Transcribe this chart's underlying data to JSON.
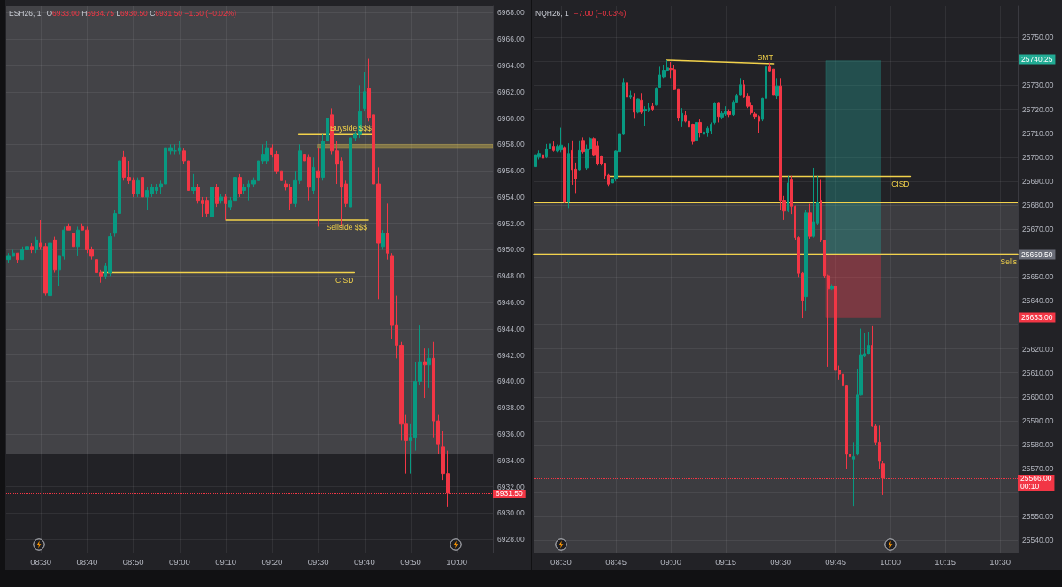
{
  "chart_data": [
    {
      "type": "candlestick",
      "title": "ESH26, 1",
      "subtitle": "O6933.00 H6934.75 L6930.50 C6931.50 −1.50 (−0.02%)",
      "x": [
        8.3833,
        8.4,
        8.4167,
        8.4333,
        8.45,
        8.4667,
        8.4833,
        8.5,
        8.5167,
        8.5333,
        8.55,
        8.5667,
        8.5833,
        8.6,
        8.6167,
        8.6333,
        8.65,
        8.6667,
        8.6833,
        8.7,
        8.7167,
        8.7333,
        8.75,
        8.7667,
        8.7833,
        8.8,
        8.8167,
        8.8333,
        8.85,
        8.8667,
        8.8833,
        8.9,
        8.9167,
        8.9333,
        8.95,
        8.9667,
        8.9833,
        9,
        9.0167,
        9.0333,
        9.05,
        9.0667,
        9.0833,
        9.1,
        9.1167,
        9.1333,
        9.15,
        9.1667,
        9.1833,
        9.2,
        9.2167,
        9.2333,
        9.25,
        9.2667,
        9.2833,
        9.3,
        9.3167,
        9.3333,
        9.35,
        9.3667,
        9.3833,
        9.4,
        9.4167,
        9.4333,
        9.45,
        9.4667,
        9.4833,
        9.5,
        9.5167,
        9.5333,
        9.55,
        9.5667,
        9.5833,
        9.6,
        9.6167,
        9.6333,
        9.65,
        9.6667,
        9.6833,
        9.7,
        9.7167,
        9.7333,
        9.75,
        9.7667,
        9.7833,
        9.8,
        9.8167,
        9.8333,
        9.85,
        9.8667,
        9.8833,
        9.9,
        9.9167,
        9.9333,
        9.95,
        9.9667
      ],
      "ohlc": [
        [
          6949.25,
          6949.75,
          6949.0,
          6949.5
        ],
        [
          6949.5,
          6950.0,
          6949.5,
          6949.75
        ],
        [
          6949.75,
          6949.75,
          6949.0,
          6949.25
        ],
        [
          6949.25,
          6950.25,
          6949.25,
          6950.0
        ],
        [
          6950.0,
          6950.75,
          6949.75,
          6950.25
        ],
        [
          6950.25,
          6950.5,
          6949.75,
          6950.0
        ],
        [
          6950.0,
          6951.0,
          6949.75,
          6950.75
        ],
        [
          6950.5,
          6952.25,
          6950.0,
          6950.25
        ],
        [
          6950.25,
          6950.5,
          6946.5,
          6946.75
        ],
        [
          6946.5,
          6952.75,
          6946.0,
          6950.5
        ],
        [
          6950.75,
          6951.0,
          6948.25,
          6948.5
        ],
        [
          6948.5,
          6949.5,
          6947.25,
          6949.5
        ],
        [
          6949.5,
          6951.75,
          6949.25,
          6951.5
        ],
        [
          6951.75,
          6952.0,
          6951.5,
          6951.5
        ],
        [
          6951.25,
          6951.5,
          6950.0,
          6950.25
        ],
        [
          6950.25,
          6951.75,
          6949.5,
          6951.5
        ],
        [
          6951.75,
          6952.0,
          6951.5,
          6951.5
        ],
        [
          6951.5,
          6951.75,
          6949.75,
          6950.0
        ],
        [
          6950.0,
          6950.25,
          6949.25,
          6949.5
        ],
        [
          6949.25,
          6949.5,
          6947.75,
          6948.25
        ],
        [
          6948.25,
          6948.5,
          6947.5,
          6948.0
        ],
        [
          6948.0,
          6949.0,
          6947.75,
          6948.75
        ],
        [
          6948.25,
          6951.25,
          6948.0,
          6951.0
        ],
        [
          6951.25,
          6953.0,
          6951.0,
          6952.75
        ],
        [
          6952.75,
          6957.5,
          6952.5,
          6956.75
        ],
        [
          6957.0,
          6957.5,
          6955.25,
          6955.5
        ],
        [
          6955.5,
          6956.75,
          6955.0,
          6955.25
        ],
        [
          6955.25,
          6955.5,
          6954.0,
          6954.25
        ],
        [
          6954.25,
          6955.5,
          6954.0,
          6955.25
        ],
        [
          6955.5,
          6955.75,
          6953.75,
          6954.0
        ],
        [
          6954.0,
          6954.75,
          6953.0,
          6954.5
        ],
        [
          6954.25,
          6955.0,
          6954.0,
          6954.75
        ],
        [
          6954.5,
          6955.0,
          6954.25,
          6954.75
        ],
        [
          6954.75,
          6955.25,
          6954.25,
          6955.0
        ],
        [
          6955.0,
          6958.5,
          6954.75,
          6957.75
        ],
        [
          6957.5,
          6958.0,
          6957.25,
          6957.75
        ],
        [
          6957.5,
          6958.0,
          6957.25,
          6957.5
        ],
        [
          6957.5,
          6958.25,
          6957.25,
          6957.75
        ],
        [
          6957.5,
          6957.75,
          6956.5,
          6956.75
        ],
        [
          6956.75,
          6957.0,
          6954.0,
          6954.5
        ],
        [
          6954.5,
          6955.75,
          6954.25,
          6954.75
        ],
        [
          6954.75,
          6955.0,
          6953.5,
          6953.75
        ],
        [
          6953.75,
          6954.0,
          6952.5,
          6953.5
        ],
        [
          6953.75,
          6954.0,
          6952.5,
          6952.75
        ],
        [
          6952.5,
          6955.0,
          6952.25,
          6954.75
        ],
        [
          6954.75,
          6955.0,
          6953.25,
          6953.5
        ],
        [
          6953.75,
          6954.25,
          6953.5,
          6954.0
        ],
        [
          6954.0,
          6954.25,
          6952.25,
          6953.5
        ],
        [
          6953.25,
          6954.0,
          6953.0,
          6953.75
        ],
        [
          6953.75,
          6955.75,
          6953.5,
          6955.5
        ],
        [
          6955.5,
          6955.75,
          6954.0,
          6954.25
        ],
        [
          6954.5,
          6955.0,
          6954.25,
          6954.75
        ],
        [
          6954.75,
          6955.25,
          6953.75,
          6955.0
        ],
        [
          6955.0,
          6955.5,
          6954.75,
          6955.25
        ],
        [
          6955.25,
          6957.0,
          6955.0,
          6956.75
        ],
        [
          6956.75,
          6958.0,
          6956.5,
          6957.25
        ],
        [
          6956.75,
          6958.25,
          6956.5,
          6957.75
        ],
        [
          6957.75,
          6958.0,
          6957.0,
          6957.25
        ],
        [
          6957.25,
          6957.5,
          6955.75,
          6956.0
        ],
        [
          6956.0,
          6956.25,
          6955.0,
          6955.25
        ],
        [
          6955.0,
          6955.25,
          6954.5,
          6954.75
        ],
        [
          6954.75,
          6955.0,
          6953.0,
          6953.5
        ],
        [
          6953.5,
          6956.0,
          6953.25,
          6955.25
        ],
        [
          6955.25,
          6958.0,
          6955.0,
          6957.5
        ],
        [
          6957.25,
          6957.5,
          6956.5,
          6956.75
        ],
        [
          6957.0,
          6957.25,
          6953.75,
          6954.75
        ],
        [
          6954.5,
          6957.0,
          6954.25,
          6956.25
        ],
        [
          6956.0,
          6957.75,
          6951.75,
          6955.5
        ],
        [
          6955.5,
          6958.75,
          6955.25,
          6958.25
        ],
        [
          6958.25,
          6961.0,
          6958.0,
          6960.0
        ],
        [
          6960.25,
          6960.75,
          6957.25,
          6957.5
        ],
        [
          6957.5,
          6958.25,
          6955.0,
          6956.5
        ],
        [
          6956.75,
          6957.0,
          6951.75,
          6954.75
        ],
        [
          6955.0,
          6955.25,
          6953.25,
          6953.5
        ],
        [
          6953.25,
          6958.75,
          6953.0,
          6958.5
        ],
        [
          6958.5,
          6959.0,
          6958.25,
          6958.75
        ],
        [
          6958.75,
          6962.5,
          6958.5,
          6960.5
        ],
        [
          6960.75,
          6963.5,
          6960.5,
          6962.0
        ],
        [
          6962.25,
          6964.5,
          6959.75,
          6960.0
        ],
        [
          6960.25,
          6960.5,
          6954.75,
          6955.0
        ],
        [
          6955.0,
          6956.25,
          6946.25,
          6950.5
        ],
        [
          6950.25,
          6951.5,
          6950.0,
          6951.25
        ],
        [
          6951.25,
          6953.5,
          6949.25,
          6949.75
        ],
        [
          6949.5,
          6949.75,
          6943.25,
          6944.25
        ],
        [
          6944.25,
          6946.5,
          6941.75,
          6942.75
        ],
        [
          6942.75,
          6943.0,
          6935.5,
          6936.75
        ],
        [
          6936.75,
          6937.5,
          6933.0,
          6935.5
        ],
        [
          6935.5,
          6936.75,
          6933.0,
          6935.75
        ],
        [
          6935.75,
          6941.5,
          6934.75,
          6940.0
        ],
        [
          6940.0,
          6944.25,
          6939.75,
          6941.5
        ],
        [
          6941.5,
          6942.5,
          6938.75,
          6941.25
        ],
        [
          6941.25,
          6942.5,
          6939.5,
          6941.75
        ],
        [
          6941.75,
          6943.0,
          6935.75,
          6937.0
        ],
        [
          6937.0,
          6937.5,
          6934.5,
          6935.25
        ],
        [
          6935.0,
          6936.25,
          6932.5,
          6933.0
        ],
        [
          6933.0,
          6934.75,
          6930.5,
          6931.5
        ]
      ],
      "colors": [
        "#089981",
        "#089981",
        "#f23645",
        "#089981",
        "#089981",
        "#f23645",
        "#089981",
        "#f23645",
        "#f23645",
        "#089981",
        "#f23645",
        "#089981",
        "#089981",
        "#f23645",
        "#f23645",
        "#089981",
        "#f23645",
        "#f23645",
        "#f23645",
        "#f23645",
        "#f23645",
        "#089981",
        "#089981",
        "#089981",
        "#089981",
        "#f23645",
        "#f23645",
        "#f23645",
        "#089981",
        "#f23645",
        "#089981",
        "#089981",
        "#089981",
        "#089981",
        "#089981",
        "#089981",
        "#089981",
        "#089981",
        "#f23645",
        "#f23645",
        "#089981",
        "#f23645",
        "#f23645",
        "#f23645",
        "#089981",
        "#f23645",
        "#089981",
        "#f23645",
        "#089981",
        "#089981",
        "#f23645",
        "#089981",
        "#089981",
        "#089981",
        "#089981",
        "#089981",
        "#089981",
        "#f23645",
        "#f23645",
        "#f23645",
        "#f23645",
        "#f23645",
        "#089981",
        "#089981",
        "#f23645",
        "#f23645",
        "#089981",
        "#f23645",
        "#089981",
        "#089981",
        "#f23645",
        "#f23645",
        "#f23645",
        "#f23645",
        "#089981",
        "#089981",
        "#089981",
        "#089981",
        "#f23645",
        "#f23645",
        "#f23645",
        "#089981",
        "#f23645",
        "#f23645",
        "#f23645",
        "#f23645",
        "#f23645",
        "#089981",
        "#089981",
        "#089981",
        "#f23645",
        "#089981",
        "#f23645",
        "#f23645",
        "#f23645",
        "#f23645"
      ],
      "xlim": [
        8.375,
        10.13
      ],
      "xticks": [
        {
          "value": 8.5,
          "label": "08:30"
        },
        {
          "value": 8.6667,
          "label": "08:40"
        },
        {
          "value": 8.8333,
          "label": "08:50"
        },
        {
          "value": 9,
          "label": "09:00"
        },
        {
          "value": 9.1667,
          "label": "09:10"
        },
        {
          "value": 9.3333,
          "label": "09:20"
        },
        {
          "value": 9.5,
          "label": "09:30"
        },
        {
          "value": 9.6667,
          "label": "09:40"
        },
        {
          "value": 9.8333,
          "label": "09:50"
        },
        {
          "value": 10,
          "label": "10:00"
        }
      ],
      "ylim": [
        6927,
        6968.5
      ],
      "yticks": [
        {
          "value": 6928,
          "label": "6928.00"
        },
        {
          "value": 6930,
          "label": "6930.00"
        },
        {
          "value": 6932,
          "label": "6932.00"
        },
        {
          "value": 6934,
          "label": "6934.00"
        },
        {
          "value": 6936,
          "label": "6936.00"
        },
        {
          "value": 6938,
          "label": "6938.00"
        },
        {
          "value": 6940,
          "label": "6940.00"
        },
        {
          "value": 6942,
          "label": "6942.00"
        },
        {
          "value": 6944,
          "label": "6944.00"
        },
        {
          "value": 6946,
          "label": "6946.00"
        },
        {
          "value": 6948,
          "label": "6948.00"
        },
        {
          "value": 6950,
          "label": "6950.00"
        },
        {
          "value": 6952,
          "label": "6952.00"
        },
        {
          "value": 6954,
          "label": "6954.00"
        },
        {
          "value": 6956,
          "label": "6956.00"
        },
        {
          "value": 6958,
          "label": "6958.00"
        },
        {
          "value": 6960,
          "label": "6960.00"
        },
        {
          "value": 6962,
          "label": "6962.00"
        },
        {
          "value": 6964,
          "label": "6964.00"
        },
        {
          "value": 6966,
          "label": "6966.00"
        },
        {
          "value": 6968,
          "label": "6968.00"
        }
      ],
      "grid": true,
      "series": [
        {
          "type": "line",
          "name": "CISD",
          "x": [
            8.7167,
            9.63
          ],
          "values": [
            6948.25,
            6948.25
          ],
          "color": "#f2d24b"
        },
        {
          "type": "line",
          "name": "Sellside $$$",
          "x": [
            9.1667,
            9.68
          ],
          "values": [
            6952.25,
            6952.25
          ],
          "color": "#f2d24b"
        },
        {
          "type": "line",
          "name": "Buyside $$$",
          "x": [
            9.43,
            9.695
          ],
          "values": [
            6958.75,
            6958.75
          ],
          "color": "#f2d24b"
        },
        {
          "type": "area",
          "x": [
            9.497,
            10.13,
            10.13,
            9.497
          ],
          "values": [
            6958,
            6958,
            6957.75,
            6957.75
          ],
          "color": "#f2d24b"
        }
      ],
      "ref_lines": [
        {
          "axis": "y",
          "value": 6934.5,
          "color": "#f2d24b"
        },
        {
          "axis": "y",
          "value": 6931.5,
          "label": "6931.50",
          "color": "#f23645",
          "line_style": "dotted"
        }
      ],
      "bands": [
        {
          "axis": "y",
          "from": 6934.5,
          "to": 6968.5,
          "color": "#434347"
        }
      ]
    },
    {
      "type": "candlestick",
      "title": "NQH26, 1",
      "subtitle": "−7.00 (−0.03%)",
      "x": [
        8.3833,
        8.4,
        8.4167,
        8.4333,
        8.45,
        8.4667,
        8.4833,
        8.5,
        8.5167,
        8.5333,
        8.55,
        8.5667,
        8.5833,
        8.6,
        8.6167,
        8.6333,
        8.65,
        8.6667,
        8.6833,
        8.7,
        8.7167,
        8.7333,
        8.75,
        8.7667,
        8.7833,
        8.8,
        8.8167,
        8.8333,
        8.85,
        8.8667,
        8.8833,
        8.9,
        8.9167,
        8.9333,
        8.95,
        8.9667,
        8.9833,
        9,
        9.0167,
        9.0333,
        9.05,
        9.0667,
        9.0833,
        9.1,
        9.1167,
        9.1333,
        9.15,
        9.1667,
        9.1833,
        9.2,
        9.2167,
        9.2333,
        9.25,
        9.2667,
        9.2833,
        9.3,
        9.3167,
        9.3333,
        9.35,
        9.3667,
        9.3833,
        9.4,
        9.4167,
        9.4333,
        9.45,
        9.4667,
        9.4833,
        9.5,
        9.5167,
        9.5333,
        9.55,
        9.5667,
        9.5833,
        9.6,
        9.6167,
        9.6333,
        9.65,
        9.6667,
        9.6833,
        9.7,
        9.7167,
        9.7333,
        9.75,
        9.7667,
        9.7833,
        9.8,
        9.8167,
        9.8333,
        9.85,
        9.8667,
        9.8833,
        9.9,
        9.9167,
        9.9333,
        9.95,
        9.9667
      ],
      "ohlc": [
        [
          25696.0,
          25701.5,
          25695.5,
          25701.0
        ],
        [
          25700.0,
          25702.75,
          25699.0,
          25701.5
        ],
        [
          25701.0,
          25701.5,
          25699.25,
          25699.5
        ],
        [
          25700.0,
          25705.5,
          25699.5,
          25703.5
        ],
        [
          25703.5,
          25707.25,
          25702.75,
          25705.5
        ],
        [
          25704.5,
          25706.5,
          25702.25,
          25702.75
        ],
        [
          25702.5,
          25705.25,
          25702.0,
          25704.5
        ],
        [
          25703.0,
          25712.25,
          25702.0,
          25705.0
        ],
        [
          25704.0,
          25704.5,
          25680.75,
          25681.25
        ],
        [
          25681.25,
          25705.75,
          25678.75,
          25701.5
        ],
        [
          25702.75,
          25707.0,
          25688.5,
          25694.75
        ],
        [
          25695.0,
          25697.75,
          25685.0,
          25691.0
        ],
        [
          25694.75,
          25707.0,
          25694.5,
          25702.75
        ],
        [
          25707.0,
          25708.25,
          25701.5,
          25702.25
        ],
        [
          25695.5,
          25705.25,
          25694.75,
          25703.5
        ],
        [
          25703.5,
          25708.25,
          25703.0,
          25707.75
        ],
        [
          25707.75,
          25708.25,
          25700.25,
          25701.0
        ],
        [
          25704.75,
          25706.5,
          25696.5,
          25697.25
        ],
        [
          25700.25,
          25700.75,
          25696.5,
          25697.25
        ],
        [
          25697.5,
          25697.5,
          25691.0,
          25692.25
        ],
        [
          25692.5,
          25693.0,
          25688.0,
          25688.75
        ],
        [
          25689.25,
          25693.0,
          25686.0,
          25691.0
        ],
        [
          25691.0,
          25702.75,
          25690.0,
          25702.5
        ],
        [
          25702.25,
          25710.25,
          25702.0,
          25709.5
        ],
        [
          25709.5,
          25733.0,
          25709.25,
          25731.0
        ],
        [
          25731.0,
          25734.0,
          25724.5,
          25725.0
        ],
        [
          25725.0,
          25727.75,
          25724.25,
          25725.5
        ],
        [
          25725.0,
          25726.75,
          25716.0,
          25718.75
        ],
        [
          25718.75,
          25724.5,
          25718.25,
          25724.25
        ],
        [
          25723.75,
          25726.75,
          25718.0,
          25718.75
        ],
        [
          25719.25,
          25721.25,
          25713.0,
          25720.0
        ],
        [
          25719.75,
          25722.5,
          25718.75,
          25720.5
        ],
        [
          25721.25,
          25722.75,
          25719.5,
          25720.0
        ],
        [
          25721.75,
          25729.25,
          25721.5,
          25728.5
        ],
        [
          25729.25,
          25737.75,
          25729.0,
          25734.25
        ],
        [
          25733.5,
          25738.5,
          25733.0,
          25736.25
        ],
        [
          25736.25,
          25740.5,
          25736.0,
          25737.25
        ],
        [
          25737.0,
          25739.75,
          25733.0,
          25736.5
        ],
        [
          25736.5,
          25738.5,
          25728.0,
          25728.25
        ],
        [
          25728.25,
          25728.25,
          25715.0,
          25716.25
        ],
        [
          25715.0,
          25720.5,
          25712.5,
          25718.25
        ],
        [
          25717.5,
          25719.25,
          25714.5,
          25715.0
        ],
        [
          25715.0,
          25715.75,
          25711.0,
          25712.5
        ],
        [
          25713.75,
          25714.0,
          25705.25,
          25706.5
        ],
        [
          25707.0,
          25715.75,
          25706.5,
          25714.5
        ],
        [
          25714.5,
          25715.75,
          25708.25,
          25710.25
        ],
        [
          25709.5,
          25712.0,
          25705.75,
          25710.5
        ],
        [
          25710.25,
          25712.75,
          25708.5,
          25712.0
        ],
        [
          25711.0,
          25714.5,
          25709.5,
          25713.75
        ],
        [
          25714.5,
          25723.0,
          25713.75,
          25722.5
        ],
        [
          25722.75,
          25723.0,
          25714.5,
          25717.0
        ],
        [
          25716.75,
          25719.25,
          25715.75,
          25718.25
        ],
        [
          25718.0,
          25721.25,
          25717.25,
          25719.0
        ],
        [
          25719.0,
          25720.0,
          25716.75,
          25717.75
        ],
        [
          25717.75,
          25723.75,
          25717.25,
          25723.0
        ],
        [
          25723.0,
          25726.5,
          25722.5,
          25725.5
        ],
        [
          25725.75,
          25733.0,
          25725.5,
          25730.25
        ],
        [
          25730.25,
          25732.25,
          25724.75,
          25725.0
        ],
        [
          25725.25,
          25726.75,
          25720.5,
          25721.25
        ],
        [
          25721.5,
          25723.0,
          25717.75,
          25718.5
        ],
        [
          25718.0,
          25718.75,
          25715.75,
          25717.0
        ],
        [
          25717.0,
          25717.5,
          25710.0,
          25715.0
        ],
        [
          25715.75,
          25724.75,
          25715.0,
          25724.5
        ],
        [
          25724.5,
          25738.5,
          25724.25,
          25737.75
        ],
        [
          25737.75,
          25739.5,
          25735.5,
          25736.0
        ],
        [
          25736.75,
          25739.25,
          25724.25,
          25725.75
        ],
        [
          25725.5,
          25733.0,
          25724.25,
          25729.75
        ],
        [
          25729.75,
          25733.0,
          25678.0,
          25682.0
        ],
        [
          25682.0,
          25683.75,
          25673.75,
          25677.5
        ],
        [
          25677.5,
          25692.25,
          25677.0,
          25689.25
        ],
        [
          25690.5,
          25692.25,
          25676.25,
          25679.5
        ],
        [
          25679.5,
          25679.75,
          25665.25,
          25666.5
        ],
        [
          25666.5,
          25667.0,
          25650.0,
          25651.5
        ],
        [
          25651.5,
          25652.0,
          25632.75,
          25640.25
        ],
        [
          25641.75,
          25678.0,
          25635.75,
          25676.75
        ],
        [
          25676.75,
          25680.5,
          25666.0,
          25667.0
        ],
        [
          25667.0,
          25695.5,
          25666.5,
          25673.0
        ],
        [
          25672.5,
          25692.25,
          25671.5,
          25681.25
        ],
        [
          25682.0,
          25690.5,
          25664.5,
          25665.25
        ],
        [
          25665.25,
          25665.5,
          25649.75,
          25650.5
        ],
        [
          25650.5,
          25651.0,
          25612.5,
          25645.0
        ],
        [
          25645.0,
          25647.0,
          25644.5,
          25646.25
        ],
        [
          25646.25,
          25647.0,
          25610.5,
          25611.0
        ],
        [
          25611.0,
          25613.0,
          25607.0,
          25609.5
        ],
        [
          25609.5,
          25620.0,
          25597.5,
          25604.5
        ],
        [
          25604.5,
          25604.75,
          25570.0,
          25576.0
        ],
        [
          25576.0,
          25583.5,
          25561.25,
          25575.0
        ],
        [
          25574.0,
          25581.0,
          25554.5,
          25575.0
        ],
        [
          25576.0,
          25611.75,
          25575.5,
          25600.75
        ],
        [
          25600.75,
          25628.5,
          25600.5,
          25617.25
        ],
        [
          25617.0,
          25626.5,
          25616.5,
          25618.0
        ],
        [
          25618.0,
          25627.0,
          25617.5,
          25621.5
        ],
        [
          25621.5,
          25629.5,
          25587.5,
          25587.75
        ],
        [
          25587.75,
          25588.5,
          25580.0,
          25581.0
        ],
        [
          25581.0,
          25588.0,
          25570.0,
          25573.0
        ],
        [
          25572.0,
          25573.0,
          25559.0,
          25566.0
        ]
      ],
      "colors": [
        "#089981",
        "#089981",
        "#f23645",
        "#089981",
        "#089981",
        "#f23645",
        "#089981",
        "#089981",
        "#f23645",
        "#089981",
        "#f23645",
        "#f23645",
        "#089981",
        "#f23645",
        "#089981",
        "#089981",
        "#f23645",
        "#f23645",
        "#f23645",
        "#f23645",
        "#f23645",
        "#089981",
        "#089981",
        "#089981",
        "#089981",
        "#f23645",
        "#089981",
        "#f23645",
        "#089981",
        "#f23645",
        "#089981",
        "#089981",
        "#f23645",
        "#089981",
        "#089981",
        "#089981",
        "#089981",
        "#f23645",
        "#f23645",
        "#f23645",
        "#089981",
        "#f23645",
        "#f23645",
        "#f23645",
        "#089981",
        "#f23645",
        "#089981",
        "#089981",
        "#089981",
        "#089981",
        "#f23645",
        "#089981",
        "#089981",
        "#f23645",
        "#089981",
        "#089981",
        "#089981",
        "#f23645",
        "#f23645",
        "#f23645",
        "#f23645",
        "#f23645",
        "#089981",
        "#089981",
        "#f23645",
        "#f23645",
        "#089981",
        "#f23645",
        "#f23645",
        "#089981",
        "#f23645",
        "#f23645",
        "#f23645",
        "#f23645",
        "#089981",
        "#f23645",
        "#089981",
        "#089981",
        "#f23645",
        "#f23645",
        "#f23645",
        "#089981",
        "#f23645",
        "#f23645",
        "#f23645",
        "#f23645",
        "#f23645",
        "#089981",
        "#089981",
        "#089981",
        "#089981",
        "#089981",
        "#f23645",
        "#f23645",
        "#f23645",
        "#f23645"
      ],
      "xlim": [
        8.375,
        10.58
      ],
      "xticks": [
        {
          "value": 8.5,
          "label": "08:30"
        },
        {
          "value": 8.75,
          "label": "08:45"
        },
        {
          "value": 9,
          "label": "09:00"
        },
        {
          "value": 9.25,
          "label": "09:15"
        },
        {
          "value": 9.5,
          "label": "09:30"
        },
        {
          "value": 9.75,
          "label": "09:45"
        },
        {
          "value": 10,
          "label": "10:00"
        },
        {
          "value": 10.25,
          "label": "10:15"
        },
        {
          "value": 10.5,
          "label": "10:30"
        }
      ],
      "ylim": [
        25535,
        25763
      ],
      "yticks": [
        {
          "value": 25540,
          "label": "25540.00"
        },
        {
          "value": 25550,
          "label": "25550.00"
        },
        {
          "value": 25560,
          "label": null
        },
        {
          "value": 25570,
          "label": "25570.00"
        },
        {
          "value": 25580,
          "label": "25580.00"
        },
        {
          "value": 25590,
          "label": "25590.00"
        },
        {
          "value": 25600,
          "label": "25600.00"
        },
        {
          "value": 25610,
          "label": "25610.00"
        },
        {
          "value": 25620,
          "label": "25620.00"
        },
        {
          "value": 25630,
          "label": null
        },
        {
          "value": 25640,
          "label": "25640.00"
        },
        {
          "value": 25650,
          "label": "25650.00"
        },
        {
          "value": 25660,
          "label": null
        },
        {
          "value": 25670,
          "label": "25670.00"
        },
        {
          "value": 25680,
          "label": "25680.00"
        },
        {
          "value": 25690,
          "label": "25690.00"
        },
        {
          "value": 25700,
          "label": "25700.00"
        },
        {
          "value": 25710,
          "label": "25710.00"
        },
        {
          "value": 25720,
          "label": "25720.00"
        },
        {
          "value": 25730,
          "label": "25730.00"
        },
        {
          "value": 25740,
          "label": null
        },
        {
          "value": 25750,
          "label": "25750.00"
        }
      ],
      "grid": true,
      "series": [
        {
          "type": "line",
          "name": "SMT",
          "x": [
            8.98,
            9.47
          ],
          "values": [
            25740.5,
            25739
          ],
          "color": "#f2d24b"
        },
        {
          "type": "line",
          "name": "CISD",
          "x": [
            8.7167,
            10.09
          ],
          "values": [
            25692,
            25692
          ],
          "color": "#f2d24b"
        },
        {
          "type": "line",
          "name": "Sells",
          "x": [
            8.375,
            10.58
          ],
          "values": [
            25659.5,
            25659.5
          ],
          "color": "#f2d24b"
        },
        {
          "type": "area",
          "x": [
            9.705,
            9.957,
            9.957,
            9.705
          ],
          "values": [
            25740.25,
            25740.25,
            25659.5,
            25659.5
          ],
          "color": "#26a69a"
        },
        {
          "type": "area",
          "x": [
            9.705,
            9.957,
            9.957,
            9.705
          ],
          "values": [
            25659.5,
            25659.5,
            25633,
            25633
          ],
          "color": "#f23645"
        }
      ],
      "ref_lines": [
        {
          "axis": "y",
          "value": 25681,
          "color": "#f2d24b"
        },
        {
          "axis": "y",
          "value": 25566,
          "label": "25566.00\n00:10",
          "color": "#f23645",
          "line_style": "dotted"
        }
      ],
      "bands": [
        {
          "axis": "y",
          "from": 25535,
          "to": 25681,
          "color": "#3c3c40"
        }
      ],
      "annotations": [
        "25740.25",
        "25659.50",
        "25633.00"
      ]
    }
  ]
}
